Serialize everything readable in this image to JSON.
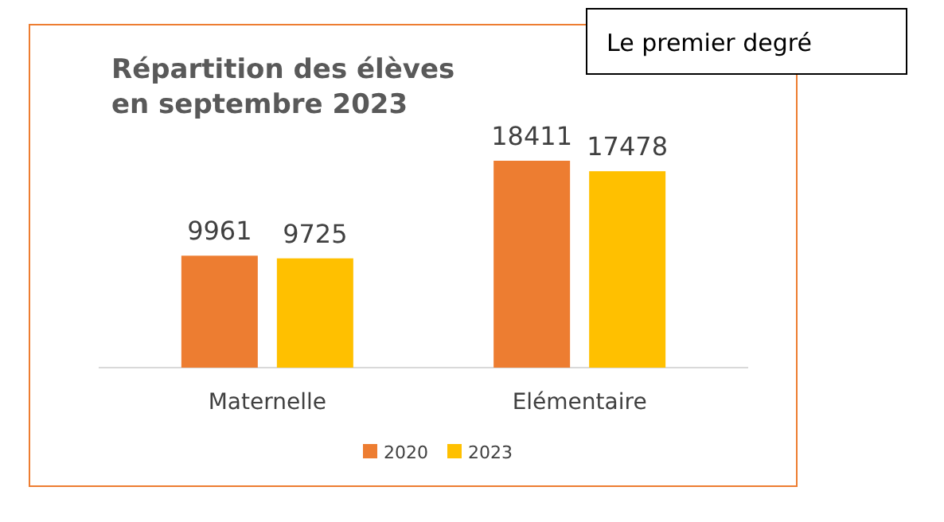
{
  "chart_data": {
    "type": "bar",
    "title": "Répartition des élèves en septembre 2023",
    "categories": [
      "Maternelle",
      "Elémentaire"
    ],
    "series": [
      {
        "name": "2020",
        "color": "#ed7d31",
        "values": [
          9961,
          18411
        ]
      },
      {
        "name": "2023",
        "color": "#ffc000",
        "values": [
          9725,
          17478
        ]
      }
    ],
    "data_labels": true,
    "legend": "bottom",
    "annotations": [
      "Le premier degré"
    ]
  }
}
